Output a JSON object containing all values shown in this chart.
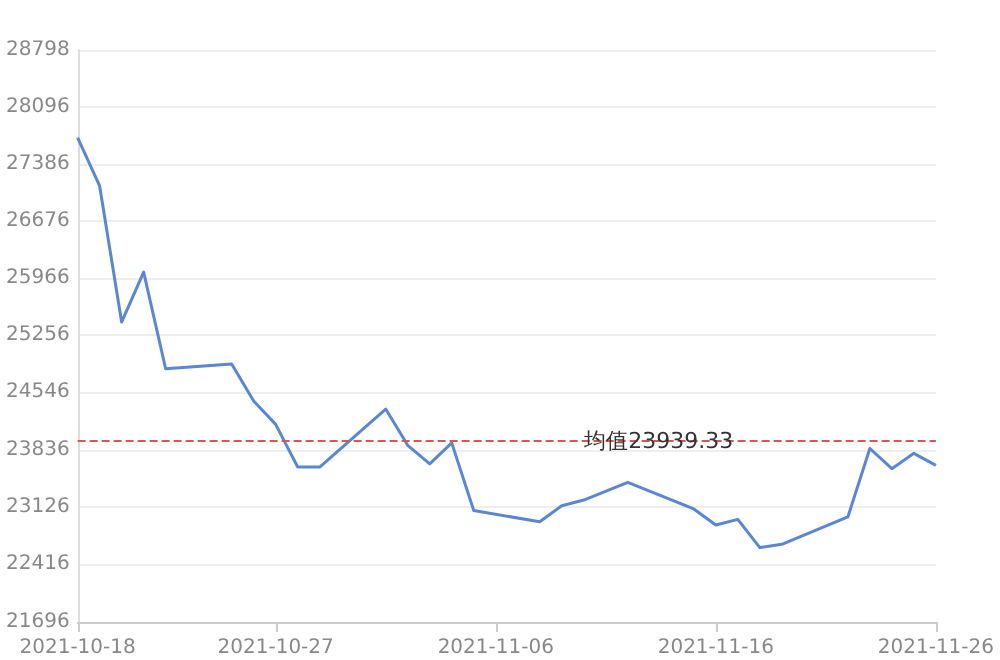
{
  "chart_data": {
    "type": "line",
    "x": [
      "2021-10-18",
      "2021-10-19",
      "2021-10-20",
      "2021-10-21",
      "2021-10-22",
      "2021-10-25",
      "2021-10-26",
      "2021-10-27",
      "2021-10-28",
      "2021-10-29",
      "2021-11-01",
      "2021-11-02",
      "2021-11-03",
      "2021-11-04",
      "2021-11-05",
      "2021-11-08",
      "2021-11-09",
      "2021-11-10",
      "2021-11-12",
      "2021-11-15",
      "2021-11-16",
      "2021-11-17",
      "2021-11-18",
      "2021-11-19",
      "2021-11-22",
      "2021-11-23",
      "2021-11-24",
      "2021-11-25",
      "2021-11-26"
    ],
    "series": [
      {
        "color": "#5b87d2",
        "values": [
          27710,
          27110,
          25420,
          26040,
          24840,
          24900,
          24440,
          24150,
          23620,
          23620,
          24340,
          23890,
          23660,
          23920,
          23080,
          22940,
          23140,
          23210,
          23430,
          23100,
          22900,
          22970,
          22620,
          22660,
          23000,
          23850,
          23600,
          23790,
          23640
        ]
      }
    ],
    "xlim": [
      "2021-10-18",
      "2021-11-26"
    ],
    "xticks": [
      "2021-10-18",
      "2021-10-27",
      "2021-11-06",
      "2021-11-16",
      "2021-11-26"
    ],
    "ylim": [
      21696,
      28798
    ],
    "yticks": [
      21696,
      22416,
      23126,
      23836,
      24546,
      25256,
      25966,
      26676,
      27386,
      28096,
      28798
    ],
    "ref_lines": [
      {
        "axis": "y",
        "value": 23939.33,
        "label": "均值23939.33",
        "color": "#e0534f",
        "line_style": "dashed"
      }
    ],
    "grid": "y",
    "marker": "none",
    "line_style": "solid"
  }
}
